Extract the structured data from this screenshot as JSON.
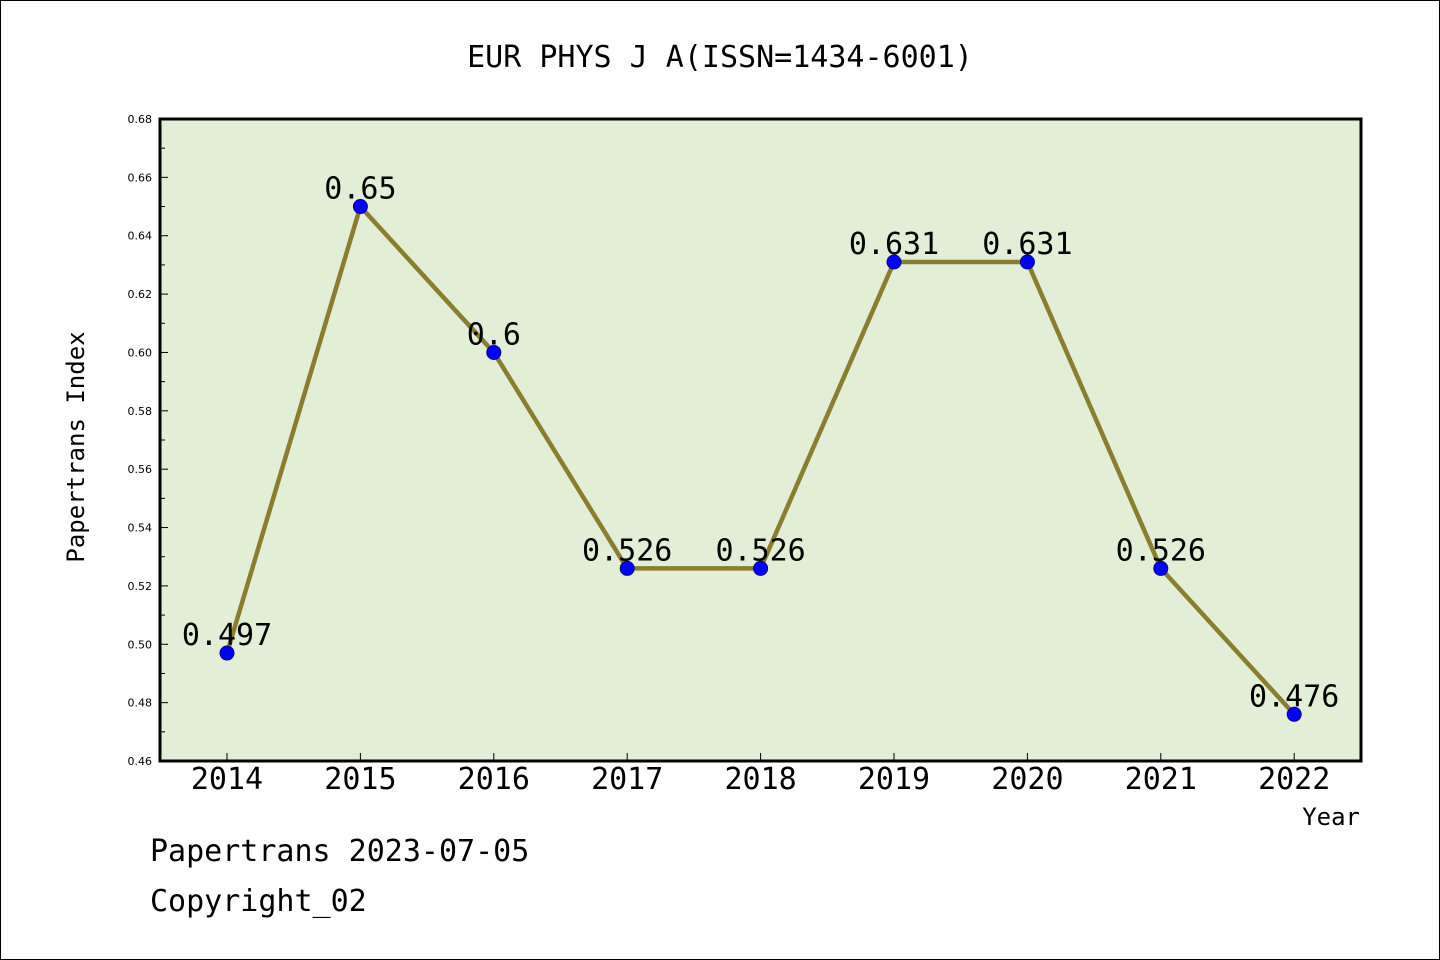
{
  "chart_data": {
    "type": "line",
    "title": "EUR PHYS J A(ISSN=1434-6001)",
    "xlabel": "Year",
    "ylabel": "Papertrans Index",
    "categories": [
      "2014",
      "2015",
      "2016",
      "2017",
      "2018",
      "2019",
      "2020",
      "2021",
      "2022"
    ],
    "series": [
      {
        "values": [
          0.497,
          0.65,
          0.6,
          0.526,
          0.526,
          0.631,
          0.631,
          0.526,
          0.476
        ],
        "labels": [
          "0.497",
          "0.65",
          "0.6",
          "0.526",
          "0.526",
          "0.631",
          "0.631",
          "0.526",
          "0.476"
        ]
      }
    ],
    "ylim": [
      0.46,
      0.68
    ],
    "yticks": [
      "0.46",
      "0.48",
      "0.50",
      "0.52",
      "0.54",
      "0.56",
      "0.58",
      "0.60",
      "0.62",
      "0.64",
      "0.66",
      "0.68"
    ],
    "grid": false,
    "colors": {
      "plot_background": "#e2efd6",
      "line": "#8b7d2e",
      "marker": "#0000ff"
    }
  },
  "footer": {
    "line1": "Papertrans 2023-07-05",
    "line2": "Copyright_02"
  }
}
